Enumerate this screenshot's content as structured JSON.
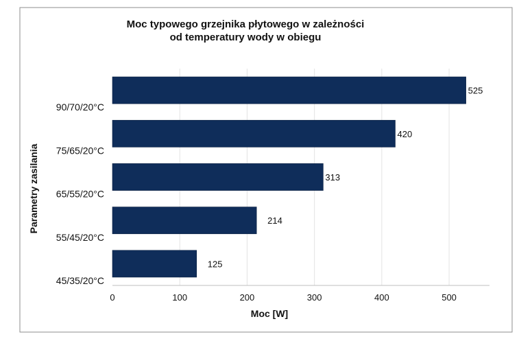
{
  "chart_data": {
    "type": "bar",
    "orientation": "horizontal",
    "title_lines": [
      "Moc typowego grzejnika płytowego w zależności",
      "od  temperatury wody w obiegu"
    ],
    "xlabel": "Moc [W]",
    "ylabel": "Parametry zasilania",
    "categories": [
      "90/70/20°C",
      "75/65/20°C",
      "65/55/20°C",
      "55/45/20°C",
      "45/35/20°C"
    ],
    "values": [
      525,
      420,
      313,
      214,
      125
    ],
    "data_labels": [
      "525",
      "420",
      "313",
      "214",
      "125"
    ],
    "xlim": [
      0,
      560
    ],
    "xticks": [
      0,
      100,
      200,
      300,
      400,
      500
    ],
    "xtick_labels": [
      "0",
      "100",
      "200",
      "300",
      "400",
      "500"
    ],
    "grid": "vertical",
    "legend": "none",
    "bar_color": "#0f2d5a",
    "grid_color": "#e3e3e3"
  }
}
